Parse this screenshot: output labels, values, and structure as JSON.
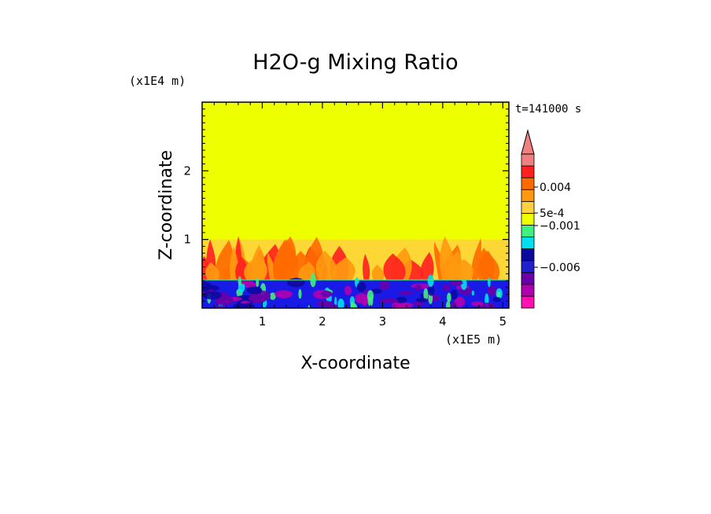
{
  "chart_data": {
    "type": "heatmap",
    "title": "H2O-g Mixing Ratio",
    "xlabel": "X-coordinate",
    "ylabel": "Z-coordinate",
    "x_unit": "(x1E5 m)",
    "y_unit": "(x1E4 m)",
    "time_label": "t=141000 s",
    "xlim": [
      0,
      5.1
    ],
    "ylim": [
      0,
      3.0
    ],
    "x_ticks": [
      1,
      2,
      3,
      4,
      5
    ],
    "y_ticks": [
      1,
      2
    ],
    "fields": {
      "background_value": 0.0007,
      "background_color": "#eeff00",
      "boundary_layer_top": 0.41,
      "boundary_layer_color": "#1a1ae6",
      "plume_top": 1.0
    },
    "colorbar": {
      "levels": [
        {
          "color": "#ff10b0"
        },
        {
          "color": "#b000b0"
        },
        {
          "color": "#6a00a8"
        },
        {
          "color": "#2020cc"
        },
        {
          "color": "#0a0aa0"
        },
        {
          "color": "#00e0f0"
        },
        {
          "color": "#40f080"
        },
        {
          "color": "#eeff00"
        },
        {
          "color": "#ffd040"
        },
        {
          "color": "#ff9a10"
        },
        {
          "color": "#ff6a00"
        },
        {
          "color": "#ff2020"
        },
        {
          "color": "#f08080"
        }
      ],
      "labels": [
        "0.004",
        "5e-4",
        "−0.001",
        "−0.006"
      ],
      "extend_color": "#f08080"
    }
  }
}
